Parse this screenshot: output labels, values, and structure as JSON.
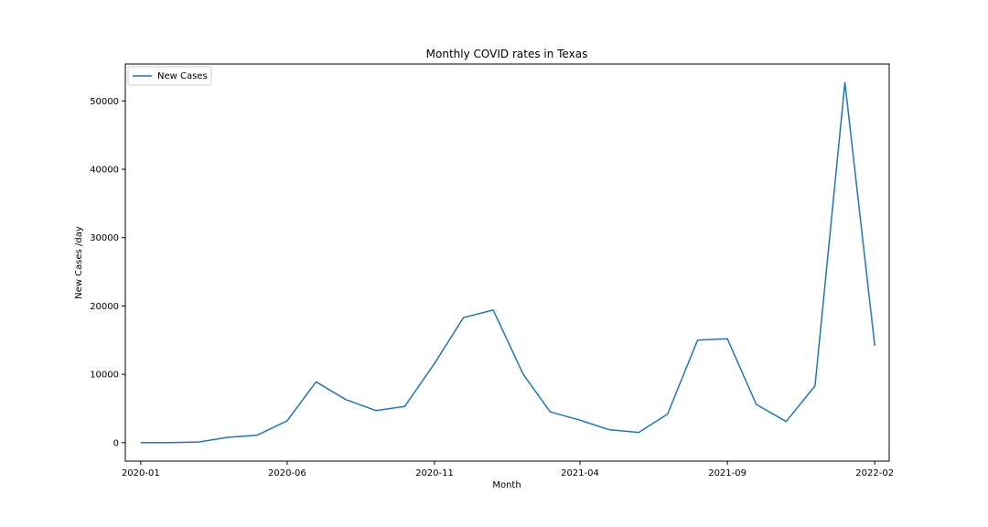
{
  "chart_data": {
    "type": "line",
    "title": "Monthly COVID rates in Texas",
    "xlabel": "Month",
    "ylabel": "New Cases /day",
    "x": [
      "2020-01",
      "2020-02",
      "2020-03",
      "2020-04",
      "2020-05",
      "2020-06",
      "2020-07",
      "2020-08",
      "2020-09",
      "2020-10",
      "2020-11",
      "2020-12",
      "2021-01",
      "2021-02",
      "2021-03",
      "2021-04",
      "2021-05",
      "2021-06",
      "2021-07",
      "2021-08",
      "2021-09",
      "2021-10",
      "2021-11",
      "2021-12",
      "2022-01",
      "2022-02"
    ],
    "series": [
      {
        "name": "New Cases",
        "color": "#1f77b4",
        "values": [
          0,
          0,
          100,
          800,
          1100,
          3200,
          8900,
          6300,
          4700,
          5300,
          11600,
          18300,
          19400,
          10000,
          4500,
          3300,
          1900,
          1500,
          4200,
          15000,
          15200,
          5600,
          3100,
          8300,
          52700,
          14200
        ]
      }
    ],
    "xticks": [
      "2020-01",
      "2020-06",
      "2020-11",
      "2021-04",
      "2021-09",
      "2022-02"
    ],
    "yticks": [
      0,
      10000,
      20000,
      30000,
      40000,
      50000
    ],
    "ylim": [
      -2700,
      55400
    ],
    "xlim": [
      "2019-12-16",
      "2022-02-16"
    ],
    "legend": {
      "placement": "top-left"
    },
    "grid": false
  }
}
